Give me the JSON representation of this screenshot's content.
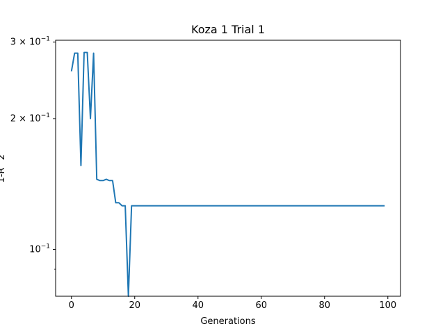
{
  "chart_data": {
    "type": "line",
    "title": "Koza 1 Trial 1",
    "xlabel": "Generations",
    "ylabel": "1-R^2",
    "y_scale": "log",
    "xlim": [
      -5,
      104
    ],
    "ylim": [
      0.078,
      0.303
    ],
    "grid": false,
    "x_ticks": [
      {
        "value": 0,
        "label": "0"
      },
      {
        "value": 20,
        "label": "20"
      },
      {
        "value": 40,
        "label": "40"
      },
      {
        "value": 60,
        "label": "60"
      },
      {
        "value": 80,
        "label": "80"
      },
      {
        "value": 100,
        "label": "100"
      }
    ],
    "y_major_ticks": [
      {
        "value": 0.1,
        "base": "10",
        "exp": "−1"
      },
      {
        "value": 0.2,
        "base": "2 × 10",
        "exp": "−1"
      },
      {
        "value": 0.3,
        "base": "3 × 10",
        "exp": "−1"
      }
    ],
    "y_minor_ticks": [
      0.09
    ],
    "series": [
      {
        "color": "#1f77b4",
        "x": [
          0,
          1,
          2,
          3,
          4,
          5,
          6,
          7,
          8,
          9,
          10,
          11,
          12,
          13,
          14,
          15,
          16,
          17,
          18,
          19,
          20,
          21,
          22,
          23,
          24,
          25,
          26,
          27,
          28,
          29,
          30,
          31,
          32,
          33,
          34,
          35,
          36,
          37,
          38,
          39,
          40,
          41,
          42,
          43,
          44,
          45,
          46,
          47,
          48,
          49,
          50,
          51,
          52,
          53,
          54,
          55,
          56,
          57,
          58,
          59,
          60,
          61,
          62,
          63,
          64,
          65,
          66,
          67,
          68,
          69,
          70,
          71,
          72,
          73,
          74,
          75,
          76,
          77,
          78,
          79,
          80,
          81,
          82,
          83,
          84,
          85,
          86,
          87,
          88,
          89,
          90,
          91,
          92,
          93,
          94,
          95,
          96,
          97,
          98,
          99
        ],
        "values": [
          0.257,
          0.283,
          0.283,
          0.156,
          0.284,
          0.284,
          0.2,
          0.283,
          0.145,
          0.144,
          0.144,
          0.145,
          0.144,
          0.144,
          0.128,
          0.128,
          0.126,
          0.126,
          0.078,
          0.126,
          0.126,
          0.126,
          0.126,
          0.126,
          0.126,
          0.126,
          0.126,
          0.126,
          0.126,
          0.126,
          0.126,
          0.126,
          0.126,
          0.126,
          0.126,
          0.126,
          0.126,
          0.126,
          0.126,
          0.126,
          0.126,
          0.126,
          0.126,
          0.126,
          0.126,
          0.126,
          0.126,
          0.126,
          0.126,
          0.126,
          0.126,
          0.126,
          0.126,
          0.126,
          0.126,
          0.126,
          0.126,
          0.126,
          0.126,
          0.126,
          0.126,
          0.126,
          0.126,
          0.126,
          0.126,
          0.126,
          0.126,
          0.126,
          0.126,
          0.126,
          0.126,
          0.126,
          0.126,
          0.126,
          0.126,
          0.126,
          0.126,
          0.126,
          0.126,
          0.126,
          0.126,
          0.126,
          0.126,
          0.126,
          0.126,
          0.126,
          0.126,
          0.126,
          0.126,
          0.126,
          0.126,
          0.126,
          0.126,
          0.126,
          0.126,
          0.126,
          0.126,
          0.126,
          0.126,
          0.126
        ]
      }
    ]
  }
}
